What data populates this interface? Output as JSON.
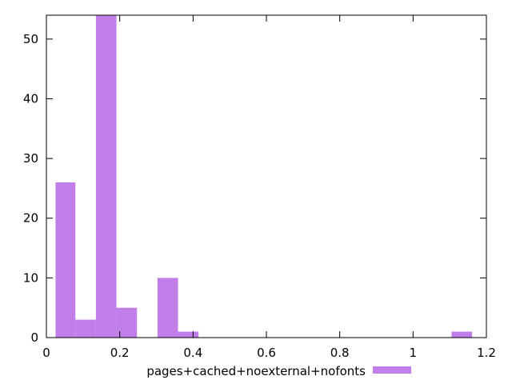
{
  "chart_data": {
    "type": "bar",
    "title": "",
    "xlabel": "",
    "ylabel": "",
    "xlim": [
      0,
      1.2
    ],
    "ylim": [
      0,
      54
    ],
    "x_ticks": [
      0,
      0.2,
      0.4,
      0.6,
      0.8,
      1.0,
      1.2
    ],
    "x_tick_labels": [
      "0",
      "0.2",
      "0.4",
      "0.6",
      "0.8",
      "1",
      "1.2"
    ],
    "y_ticks": [
      0,
      10,
      20,
      30,
      40,
      50
    ],
    "y_tick_labels": [
      "0",
      "10",
      "20",
      "30",
      "40",
      "50"
    ],
    "grid": false,
    "legend_position": "bottom-center",
    "series": [
      {
        "name": "pages+cached+noexternal+nofonts",
        "color": "#c27ee8",
        "bins": [
          {
            "x_start": 0.025,
            "x_end": 0.079,
            "value": 26
          },
          {
            "x_start": 0.079,
            "x_end": 0.135,
            "value": 3
          },
          {
            "x_start": 0.135,
            "x_end": 0.191,
            "value": 54
          },
          {
            "x_start": 0.191,
            "x_end": 0.247,
            "value": 5
          },
          {
            "x_start": 0.303,
            "x_end": 0.359,
            "value": 10
          },
          {
            "x_start": 0.359,
            "x_end": 0.415,
            "value": 1
          },
          {
            "x_start": 1.105,
            "x_end": 1.161,
            "value": 1
          }
        ]
      }
    ]
  }
}
